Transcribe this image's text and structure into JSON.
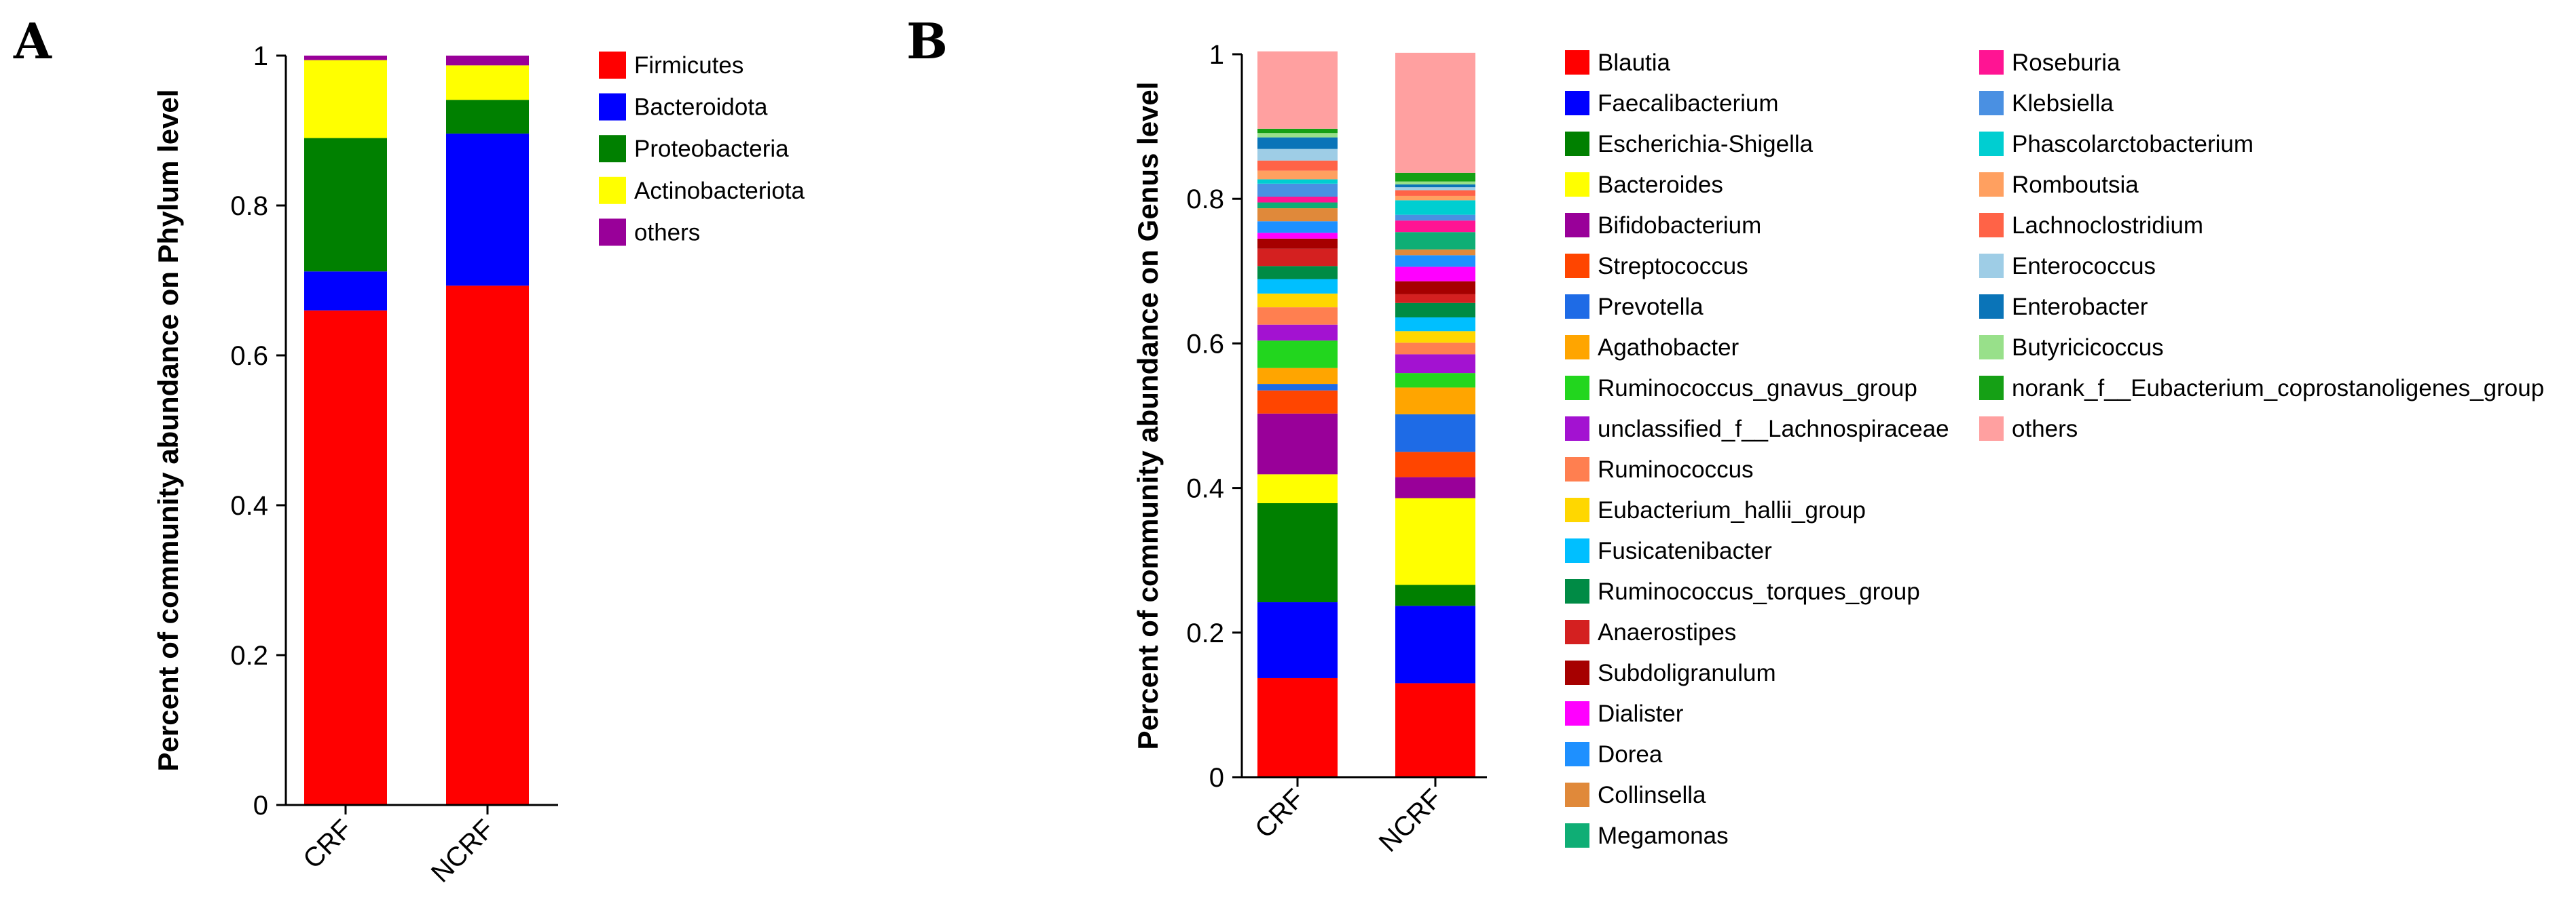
{
  "panels": [
    {
      "letter": "A",
      "chart_data": {
        "type": "bar",
        "stacked": true,
        "title": "",
        "xlabel": "",
        "ylabel": "Percent of community abundance on Phylum level",
        "ylim": [
          0,
          1
        ],
        "yticks": [
          0,
          0.2,
          0.4,
          0.6,
          0.8,
          1
        ],
        "ytick_labels": [
          "0",
          "0.2",
          "0.4",
          "0.6",
          "0.8",
          "1"
        ],
        "categories": [
          "CRF",
          "NCRF"
        ],
        "legend_position": "right",
        "series": [
          {
            "name": "Firmicutes",
            "color": "#ff0000",
            "values": [
              0.66,
              0.693
            ]
          },
          {
            "name": "Bacteroidota",
            "color": "#0000ff",
            "values": [
              0.052,
              0.203
            ]
          },
          {
            "name": "Proteobacteria",
            "color": "#008000",
            "values": [
              0.178,
              0.045
            ]
          },
          {
            "name": "Actinobacteriota",
            "color": "#ffff00",
            "values": [
              0.104,
              0.046
            ]
          },
          {
            "name": "others",
            "color": "#990099",
            "values": [
              0.006,
              0.013
            ]
          }
        ]
      }
    },
    {
      "letter": "B",
      "chart_data": {
        "type": "bar",
        "stacked": true,
        "title": "",
        "xlabel": "",
        "ylabel": "Percent of community abundance on Genus level",
        "ylim": [
          0,
          1
        ],
        "yticks": [
          0,
          0.2,
          0.4,
          0.6,
          0.8,
          1
        ],
        "ytick_labels": [
          "0",
          "0.2",
          "0.4",
          "0.6",
          "0.8",
          "1"
        ],
        "categories": [
          "CRF",
          "NCRF"
        ],
        "legend_position": "right",
        "series": [
          {
            "name": "Blautia",
            "color": "#ff0000",
            "values": [
              0.137,
              0.13
            ]
          },
          {
            "name": "Faecalibacterium",
            "color": "#0000ff",
            "values": [
              0.105,
              0.107
            ]
          },
          {
            "name": "Escherichia-Shigella",
            "color": "#008000",
            "values": [
              0.137,
              0.029
            ]
          },
          {
            "name": "Bacteroides",
            "color": "#ffff00",
            "values": [
              0.04,
              0.12
            ]
          },
          {
            "name": "Bifidobacterium",
            "color": "#990099",
            "values": [
              0.084,
              0.029
            ]
          },
          {
            "name": "Streptococcus",
            "color": "#ff4500",
            "values": [
              0.032,
              0.035
            ]
          },
          {
            "name": "Prevotella",
            "color": "#1e6be6",
            "values": [
              0.009,
              0.052
            ]
          },
          {
            "name": "Agathobacter",
            "color": "#ffa500",
            "values": [
              0.022,
              0.037
            ]
          },
          {
            "name": "Ruminococcus_gnavus_group",
            "color": "#22d61e",
            "values": [
              0.038,
              0.02
            ]
          },
          {
            "name": "unclassified_f__Lachnospiraceae",
            "color": "#a312d1",
            "values": [
              0.022,
              0.026
            ]
          },
          {
            "name": "Ruminococcus",
            "color": "#ff7f50",
            "values": [
              0.024,
              0.016
            ]
          },
          {
            "name": "Eubacterium_hallii_group",
            "color": "#ffd700",
            "values": [
              0.019,
              0.016
            ]
          },
          {
            "name": "Fusicatenibacter",
            "color": "#00bfff",
            "values": [
              0.02,
              0.019
            ]
          },
          {
            "name": "Ruminococcus_torques_group",
            "color": "#008b45",
            "values": [
              0.018,
              0.02
            ]
          },
          {
            "name": "Anaerostipes",
            "color": "#d42020",
            "values": [
              0.024,
              0.012
            ]
          },
          {
            "name": "Subdoligranulum",
            "color": "#a60000",
            "values": [
              0.014,
              0.018
            ]
          },
          {
            "name": "Dialister",
            "color": "#ff00ff",
            "values": [
              0.008,
              0.02
            ]
          },
          {
            "name": "Dorea",
            "color": "#1e90ff",
            "values": [
              0.016,
              0.016
            ]
          },
          {
            "name": "Collinsella",
            "color": "#e0893a",
            "values": [
              0.018,
              0.008
            ]
          },
          {
            "name": "Megamonas",
            "color": "#0fae75",
            "values": [
              0.008,
              0.024
            ]
          },
          {
            "name": "Roseburia",
            "color": "#ff1493",
            "values": [
              0.008,
              0.016
            ]
          },
          {
            "name": "Klebsiella",
            "color": "#4a90e2",
            "values": [
              0.018,
              0.008
            ]
          },
          {
            "name": "Phascolarctobacterium",
            "color": "#00ced1",
            "values": [
              0.006,
              0.02
            ]
          },
          {
            "name": "Romboutsia",
            "color": "#ffa060",
            "values": [
              0.012,
              0.006
            ]
          },
          {
            "name": "Lachnoclostridium",
            "color": "#ff6347",
            "values": [
              0.014,
              0.008
            ]
          },
          {
            "name": "Enterococcus",
            "color": "#9ecde6",
            "values": [
              0.016,
              0.004
            ]
          },
          {
            "name": "Enterobacter",
            "color": "#0a74b8",
            "values": [
              0.016,
              0.004
            ]
          },
          {
            "name": "Butyricicoccus",
            "color": "#98e08a",
            "values": [
              0.006,
              0.004
            ]
          },
          {
            "name": "norank_f__Eubacterium_coprostanoligenes_group",
            "color": "#15a015",
            "values": [
              0.006,
              0.012
            ]
          },
          {
            "name": "others",
            "color": "#ffa0a0",
            "values": [
              0.107,
              0.166
            ]
          }
        ]
      }
    }
  ]
}
